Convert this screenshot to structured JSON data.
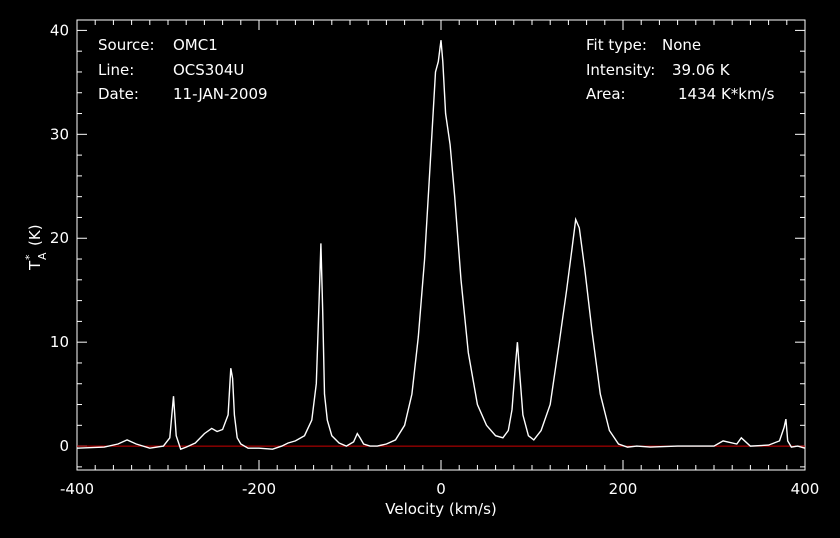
{
  "header_left": {
    "source_key": "Source:",
    "source_val": "OMC1",
    "line_key": "Line:",
    "line_val": "OCS304U",
    "date_key": "Date:",
    "date_val": "11-JAN-2009"
  },
  "header_right": {
    "fit_key": "Fit type:",
    "fit_val": "None",
    "int_key": "Intensity:",
    "int_val": "39.06 K",
    "area_key": "Area:",
    "area_val": "1434 K*km/s"
  },
  "colors": {
    "background": "#000000",
    "spectrum": "#ffffff",
    "baseline": "#cc0000",
    "axes": "#ffffff"
  },
  "chart_data": {
    "type": "line",
    "title": "",
    "xlabel": "Velocity (km/s)",
    "ylabel_main": "T",
    "ylabel_sup": "*",
    "ylabel_sub": "A",
    "ylabel_unit": "(K)",
    "xlim": [
      -400,
      400
    ],
    "ylim": [
      -2.3,
      41
    ],
    "x_ticks": [
      -400,
      -200,
      0,
      200,
      400
    ],
    "x_tick_labels": [
      "-400",
      "-200",
      "0",
      "200",
      "400"
    ],
    "y_ticks": [
      0,
      10,
      20,
      30,
      40
    ],
    "y_tick_labels": [
      "0",
      "10",
      "20",
      "30",
      "40"
    ],
    "baseline_y": 0,
    "series": [
      {
        "x": [
          -400,
          -370,
          -355,
          -345,
          -335,
          -320,
          -305,
          -298,
          -294,
          -291,
          -286,
          -280,
          -270,
          -260,
          -252,
          -246,
          -240,
          -234,
          -231,
          -229,
          -227,
          -224,
          -220,
          -212,
          -200,
          -185,
          -175,
          -168,
          -160,
          -150,
          -142,
          -137,
          -134,
          -132,
          -130,
          -128,
          -125,
          -120,
          -112,
          -104,
          -96,
          -92,
          -89,
          -85,
          -78,
          -70,
          -60,
          -50,
          -40,
          -32,
          -25,
          -18,
          -12,
          -6,
          -3,
          0,
          2,
          5,
          10,
          15,
          22,
          30,
          40,
          50,
          60,
          68,
          74,
          78,
          82,
          84,
          86,
          90,
          96,
          102,
          110,
          120,
          130,
          138,
          144,
          148,
          152,
          158,
          166,
          175,
          185,
          195,
          205,
          215,
          230,
          260,
          300,
          310,
          325,
          330,
          340,
          360,
          372,
          377,
          379,
          381,
          385,
          392,
          400
        ],
        "y": [
          -0.2,
          -0.1,
          0.2,
          0.6,
          0.2,
          -0.2,
          0.0,
          0.8,
          4.8,
          1.0,
          -0.3,
          -0.1,
          0.3,
          1.2,
          1.7,
          1.4,
          1.6,
          3.0,
          7.5,
          6.5,
          3.0,
          0.8,
          0.2,
          -0.2,
          -0.2,
          -0.3,
          0.0,
          0.3,
          0.5,
          1.0,
          2.5,
          6.0,
          14.0,
          19.5,
          13.0,
          5.0,
          2.5,
          1.0,
          0.3,
          0.0,
          0.4,
          1.2,
          0.8,
          0.2,
          0.0,
          0.0,
          0.2,
          0.6,
          2.0,
          5.0,
          10.5,
          18.0,
          27.0,
          36.0,
          37.0,
          39.06,
          37.0,
          32.0,
          29.0,
          24.0,
          16.0,
          9.0,
          4.0,
          2.0,
          1.0,
          0.8,
          1.5,
          3.5,
          8.0,
          10.0,
          7.5,
          3.0,
          1.0,
          0.6,
          1.5,
          4.0,
          10.0,
          15.0,
          19.0,
          21.8,
          21.0,
          17.0,
          11.0,
          5.0,
          1.5,
          0.2,
          -0.1,
          0.0,
          -0.1,
          0.0,
          0.0,
          0.5,
          0.2,
          0.8,
          0.0,
          0.1,
          0.5,
          1.8,
          2.6,
          0.5,
          -0.1,
          0.0,
          -0.2
        ]
      }
    ]
  }
}
